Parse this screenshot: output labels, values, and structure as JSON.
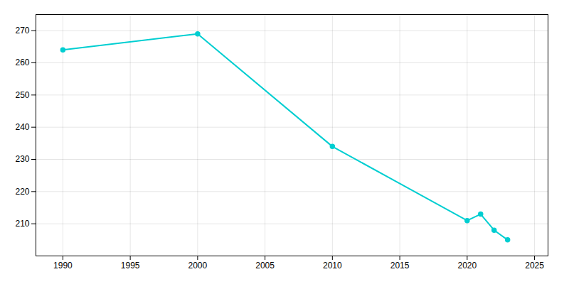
{
  "chart_data": {
    "type": "line",
    "x": [
      1990,
      2000,
      2010,
      2020,
      2021,
      2022,
      2023
    ],
    "values": [
      264,
      269,
      234,
      211,
      213,
      208,
      205
    ],
    "color": "#00CED1",
    "marker": "circle",
    "xlim": [
      1988,
      2026
    ],
    "xticks": [
      1990,
      1995,
      2000,
      2005,
      2010,
      2015,
      2020,
      2025
    ],
    "ylim": [
      200,
      275
    ],
    "yticks": [
      210,
      220,
      230,
      240,
      250,
      260,
      270
    ],
    "grid": true
  }
}
